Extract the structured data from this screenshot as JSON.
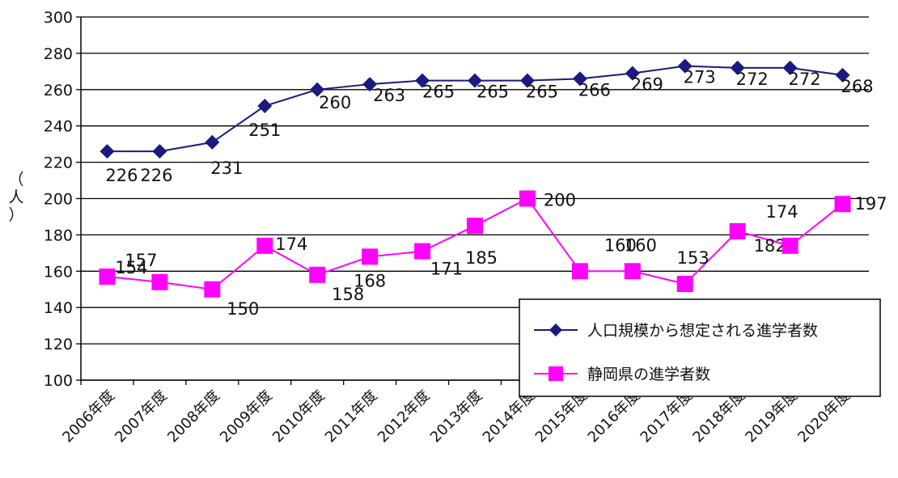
{
  "chart_data": {
    "type": "line",
    "title": "",
    "xlabel": "",
    "ylabel": "（人）",
    "ylim": [
      100,
      300
    ],
    "yticks": [
      100,
      120,
      140,
      160,
      180,
      200,
      220,
      240,
      260,
      280,
      300
    ],
    "grid": true,
    "legend_position": "bottom-right",
    "categories": [
      "2006年度",
      "2007年度",
      "2008年度",
      "2009年度",
      "2010年度",
      "2011年度",
      "2012年度",
      "2013年度",
      "2014年度",
      "2015年度",
      "2016年度",
      "2017年度",
      "2018年度",
      "2019年度",
      "2020年度"
    ],
    "series": [
      {
        "name": "人口規模から想定される進学者数",
        "color": "#1a1a80",
        "marker": "diamond",
        "values": [
          226,
          226,
          231,
          251,
          260,
          263,
          265,
          265,
          265,
          266,
          269,
          273,
          272,
          272,
          268
        ]
      },
      {
        "name": "静岡県の進学者数",
        "color": "#ff00ff",
        "marker": "square",
        "values": [
          157,
          154,
          150,
          174,
          158,
          168,
          171,
          185,
          200,
          160,
          160,
          153,
          182,
          174,
          197
        ]
      }
    ]
  }
}
